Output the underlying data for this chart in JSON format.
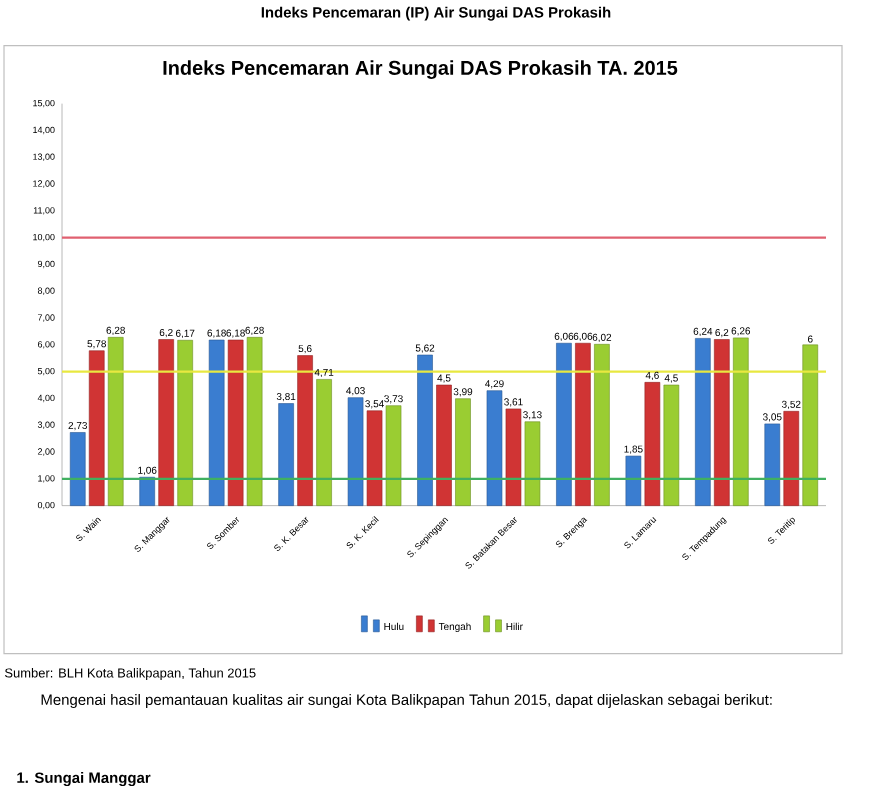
{
  "chart_data": {
    "type": "bar",
    "title": "Indeks Pencemaran (IP) Air Sungai DAS Prokasih",
    "subtitle": "Indeks Pencemaran Air Sungai DAS Prokasih TA. 2015",
    "categories": [
      "S. Wain",
      "S. Manggar",
      "S. Somber",
      "S. K. Besar",
      "S. K. Kecil",
      "S. Sepinggan",
      "S. Batakan Besar",
      "S. Brenga",
      "S. Lamaru",
      "S. Tempadung",
      "S. Teritip"
    ],
    "series": [
      {
        "name": "Hulu",
        "color": "#3a7dd0",
        "values": [
          2.73,
          1.06,
          6.18,
          3.81,
          4.03,
          5.62,
          4.29,
          6.06,
          1.85,
          6.24,
          3.05
        ],
        "value_labels": [
          "2,73",
          "1,06",
          "6,18",
          "3,81",
          "4,03",
          "5,62",
          "4,29",
          "6,06",
          "1,85",
          "6,24",
          "3,05"
        ]
      },
      {
        "name": "Tengah",
        "color": "#d03434",
        "values": [
          5.78,
          6.2,
          6.18,
          5.6,
          3.54,
          4.5,
          3.61,
          6.06,
          4.6,
          6.2,
          3.52
        ],
        "value_labels": [
          "5,78",
          "6,2",
          "6,18",
          "5,6",
          "3,54",
          "4,5",
          "3,61",
          "6,06",
          "4,6",
          "6,2",
          "3,52"
        ]
      },
      {
        "name": "Hilir",
        "color": "#9acd32",
        "values": [
          6.28,
          6.17,
          6.28,
          4.71,
          3.73,
          3.99,
          3.13,
          6.02,
          4.5,
          6.26,
          6
        ],
        "value_labels": [
          "6,28",
          "6,17",
          "6,28",
          "4,71",
          "3,73",
          "3,99",
          "3,13",
          "6,02",
          "4,5",
          "6,26",
          "6"
        ]
      }
    ],
    "ylim": [
      0,
      15
    ],
    "yticks": [
      {
        "value": 0,
        "label": "0,00"
      },
      {
        "value": 1,
        "label": "1,00"
      },
      {
        "value": 2,
        "label": "2,00"
      },
      {
        "value": 3,
        "label": "3,00"
      },
      {
        "value": 4,
        "label": "4,00"
      },
      {
        "value": 5,
        "label": "5,00"
      },
      {
        "value": 6,
        "label": "6,00"
      },
      {
        "value": 7,
        "label": "7,00"
      },
      {
        "value": 8,
        "label": "8,00"
      },
      {
        "value": 9,
        "label": "9,00"
      },
      {
        "value": 10,
        "label": "10,00"
      },
      {
        "value": 11,
        "label": "11,00"
      },
      {
        "value": 12,
        "label": "12,00"
      },
      {
        "value": 13,
        "label": "13,00"
      },
      {
        "value": 14,
        "label": "14,00"
      },
      {
        "value": 15,
        "label": "15,00"
      }
    ],
    "ref_lines": [
      {
        "axis": "y",
        "value": 10,
        "color": "#e06070"
      },
      {
        "axis": "y",
        "value": 5,
        "color": "#e8e840"
      },
      {
        "axis": "y",
        "value": 1,
        "color": "#40b060"
      }
    ],
    "legend": "bottom",
    "grid": false,
    "annotations": [
      "Sumber: BLH Kota Balikpapan, Tahun 2015",
      "Mengenai hasil pemantauan kualitas air sungai Kota Balikpapan Tahun 2015, dapat dijelaskan sebagai berikut:",
      "1. Sungai Manggar"
    ]
  }
}
